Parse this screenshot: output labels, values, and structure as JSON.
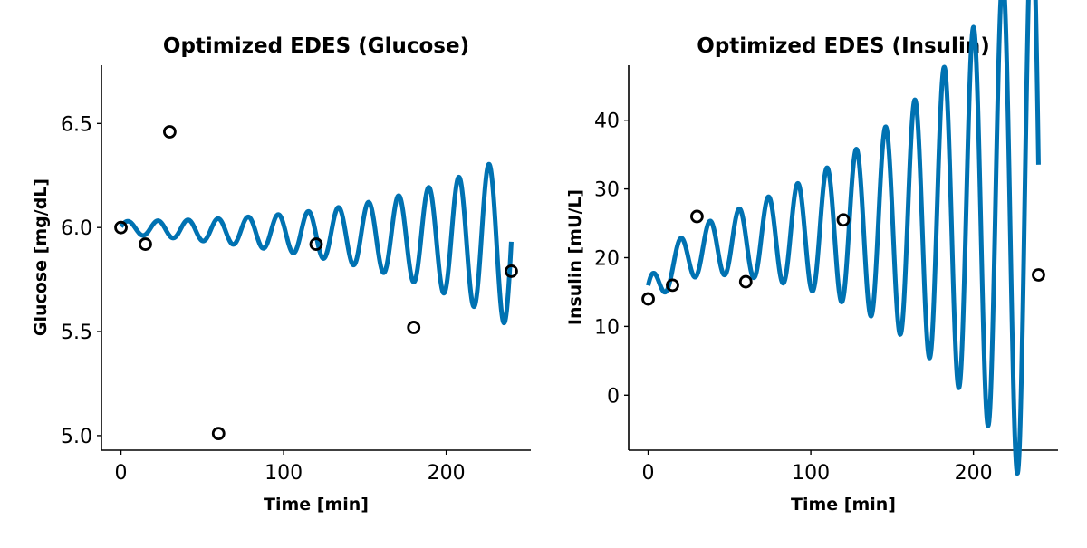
{
  "chart_data": [
    {
      "type": "line",
      "title": "Optimized EDES (Glucose)",
      "xlabel": "Time [min]",
      "ylabel": "Glucose [mg/dL]",
      "xlim": [
        -12,
        252
      ],
      "ylim": [
        4.93,
        6.78
      ],
      "xticks": [
        0,
        100,
        200
      ],
      "xtick_labels": [
        "0",
        "100",
        "200"
      ],
      "yticks": [
        5.0,
        5.5,
        6.0,
        6.5
      ],
      "ytick_labels": [
        "5.0",
        "5.5",
        "6.0",
        "6.5"
      ],
      "grid": false,
      "line_color": "#0072b2",
      "marker_color": "#000000",
      "model": {
        "t_start": 0,
        "t_end": 240,
        "baseline": 6.0,
        "trend": -0.00025,
        "amp0": 0.03,
        "amp_growth": 0.011,
        "period": 18.5,
        "phase": 0.15
      },
      "observations": {
        "x": [
          0,
          15,
          30,
          60,
          120,
          180,
          240
        ],
        "y": [
          6.0,
          5.92,
          6.46,
          5.01,
          5.92,
          5.52,
          5.79
        ]
      }
    },
    {
      "type": "line",
      "title": "Optimized EDES (Insulin)",
      "xlabel": "Time [min]",
      "ylabel": "Insulin [mU/L]",
      "xlim": [
        -12,
        252
      ],
      "ylim": [
        -8,
        48
      ],
      "xticks": [
        0,
        100,
        200
      ],
      "xtick_labels": [
        "0",
        "100",
        "200"
      ],
      "yticks": [
        0,
        10,
        20,
        30,
        40
      ],
      "ytick_labels": [
        "0",
        "10",
        "20",
        "30",
        "40"
      ],
      "grid": false,
      "line_color": "#0072b2",
      "marker_color": "#000000",
      "model": {
        "t_start": 0,
        "t_end": 240,
        "baseline": 14,
        "rise": 7,
        "rise_tau": 15,
        "trend": 0.025,
        "amp0": 2.5,
        "amp_growth": 0.012,
        "period": 18,
        "phase": 0.9
      },
      "observations": {
        "x": [
          0,
          15,
          30,
          60,
          120,
          240
        ],
        "y": [
          14.0,
          16.0,
          26.0,
          16.5,
          25.5,
          17.5
        ]
      }
    }
  ]
}
